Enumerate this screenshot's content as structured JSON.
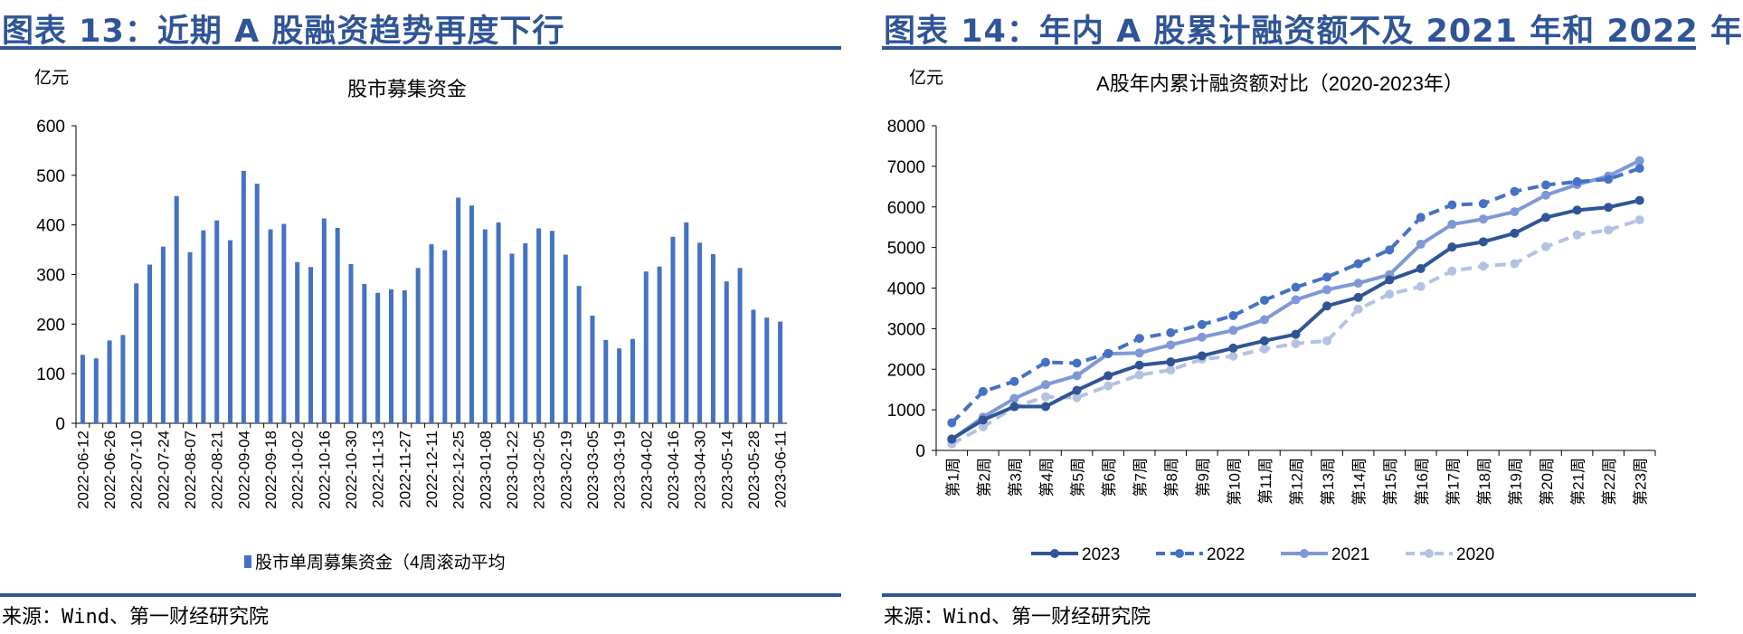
{
  "panels": [
    {
      "title": "图表 13：近期 A 股融资趋势再度下行",
      "source": "来源：Wind、第一财经研究院"
    },
    {
      "title": "图表 14：年内 A 股累计融资额不及 2021 年和 2022 年",
      "source": "来源：Wind、第一财经研究院"
    }
  ],
  "chart_data": [
    {
      "type": "bar",
      "title": "股市募集资金",
      "ylabel": "亿元",
      "xlabel": "",
      "ylim": [
        0,
        600
      ],
      "yticks": [
        0,
        100,
        200,
        300,
        400,
        500,
        600
      ],
      "grid": false,
      "legend_position": "bottom",
      "series": [
        {
          "name": "股市单周募集资金（4周滚动平均",
          "color": "#4472C4",
          "values": [
            138,
            131,
            167,
            178,
            282,
            320,
            356,
            458,
            345,
            389,
            409,
            369,
            509,
            483,
            391,
            402,
            325,
            315,
            413,
            394,
            321,
            281,
            263,
            270,
            268,
            313,
            361,
            349,
            455,
            439,
            391,
            405,
            342,
            363,
            393,
            388,
            340,
            277,
            217,
            168,
            151,
            170,
            306,
            316,
            376,
            405,
            364,
            341,
            286,
            313,
            229,
            213,
            205
          ]
        }
      ],
      "tick_labels": [
        "2022-06-12",
        "2022-06-26",
        "2022-07-10",
        "2022-07-24",
        "2022-08-07",
        "2022-08-21",
        "2022-09-04",
        "2022-09-18",
        "2022-10-02",
        "2022-10-16",
        "2022-10-30",
        "2022-11-13",
        "2022-11-27",
        "2022-12-11",
        "2022-12-25",
        "2023-01-08",
        "2023-01-22",
        "2023-02-05",
        "2023-02-19",
        "2023-03-05",
        "2023-03-19",
        "2023-04-02",
        "2023-04-16",
        "2023-04-30",
        "2023-05-14",
        "2023-05-28",
        "2023-06-11"
      ]
    },
    {
      "type": "line",
      "title": "A股年内累计融资额对比（2020-2023年）",
      "ylabel": "亿元",
      "xlabel": "",
      "ylim": [
        0,
        8000
      ],
      "yticks": [
        0,
        1000,
        2000,
        3000,
        4000,
        5000,
        6000,
        7000,
        8000
      ],
      "grid": false,
      "legend_position": "bottom",
      "categories": [
        "第1周",
        "第2周",
        "第3周",
        "第4周",
        "第5周",
        "第6周",
        "第7周",
        "第8周",
        "第9周",
        "第10周",
        "第11周",
        "第12周",
        "第13周",
        "第14周",
        "第15周",
        "第16周",
        "第17周",
        "第18周",
        "第19周",
        "第20周",
        "第21周",
        "第22周",
        "第23周"
      ],
      "series": [
        {
          "name": "2023",
          "color": "#2F5597",
          "dash": false,
          "values": [
            280,
            750,
            1080,
            1080,
            1480,
            1840,
            2100,
            2180,
            2330,
            2520,
            2700,
            2860,
            3560,
            3770,
            4200,
            4480,
            5010,
            5140,
            5350,
            5740,
            5920,
            5990,
            6160
          ]
        },
        {
          "name": "2022",
          "color": "#4472C4",
          "dash": true,
          "values": [
            680,
            1450,
            1700,
            2170,
            2150,
            2390,
            2760,
            2900,
            3100,
            3320,
            3700,
            4020,
            4270,
            4600,
            4940,
            5740,
            6050,
            6080,
            6380,
            6540,
            6620,
            6680,
            6950
          ]
        },
        {
          "name": "2021",
          "color": "#7F98D6",
          "dash": false,
          "values": [
            270,
            820,
            1280,
            1620,
            1840,
            2380,
            2400,
            2600,
            2790,
            2960,
            3220,
            3710,
            3960,
            4120,
            4330,
            5080,
            5570,
            5700,
            5880,
            6290,
            6550,
            6760,
            7140
          ]
        },
        {
          "name": "2020",
          "color": "#B4C2E2",
          "dash": true,
          "values": [
            160,
            580,
            1070,
            1320,
            1300,
            1590,
            1860,
            1980,
            2250,
            2320,
            2500,
            2630,
            2700,
            3480,
            3850,
            4040,
            4420,
            4540,
            4600,
            5020,
            5310,
            5430,
            5680
          ]
        }
      ]
    }
  ]
}
